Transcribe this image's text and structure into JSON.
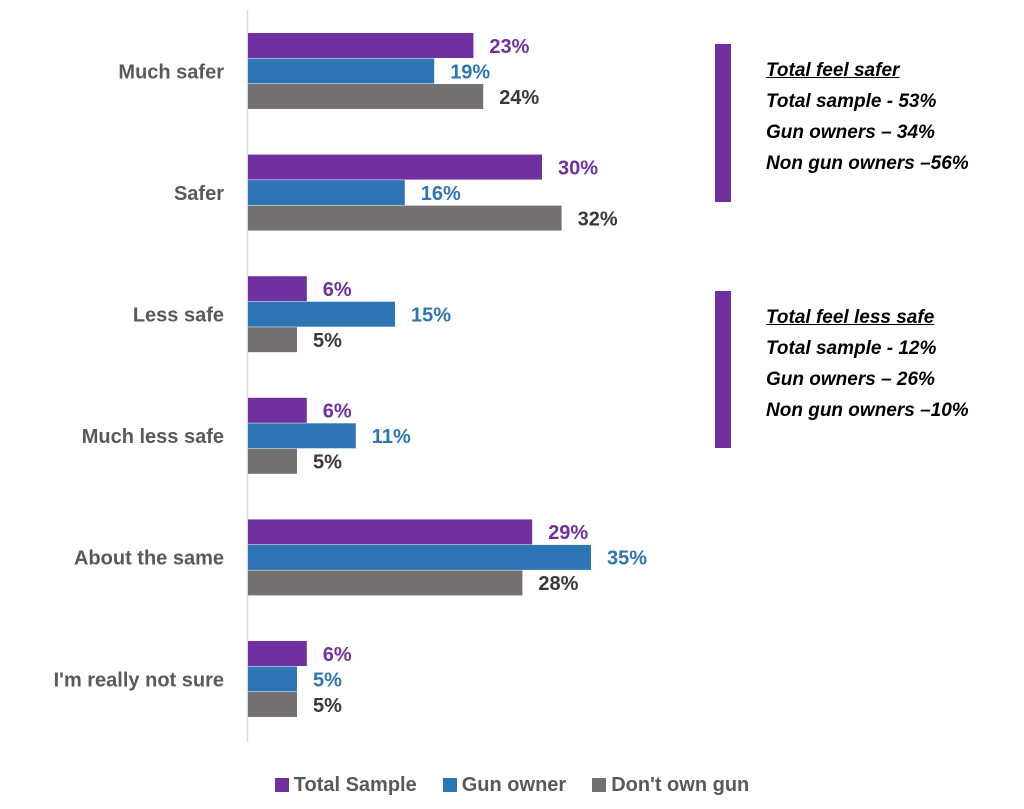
{
  "colors": {
    "total": "#7030A0",
    "gun_owner": "#2E75B6",
    "dont_own": "#767171",
    "category_text": "#595959",
    "axis": "#D9D9D9",
    "callout_text": "#000000"
  },
  "chart_data": {
    "type": "bar",
    "orientation": "horizontal",
    "categories": [
      "Much safer",
      "Safer",
      "Less safe",
      "Much less safe",
      "About the same",
      "I'm really not sure"
    ],
    "series": [
      {
        "name": "Total Sample",
        "values": [
          23,
          30,
          6,
          6,
          29,
          6
        ]
      },
      {
        "name": "Gun owner",
        "values": [
          19,
          16,
          15,
          11,
          35,
          5
        ]
      },
      {
        "name": "Don't own gun",
        "values": [
          24,
          32,
          5,
          5,
          28,
          5
        ]
      }
    ],
    "value_suffix": "%",
    "xlim": [
      0,
      70
    ],
    "grid": false,
    "legend_position": "bottom"
  },
  "callouts": [
    {
      "title": "Total feel safer",
      "lines": [
        "Total sample - 53%",
        "Gun owners – 34%",
        "Non gun owners  –56%"
      ]
    },
    {
      "title": "Total feel less safe",
      "lines": [
        "Total sample - 12%",
        "Gun owners – 26%",
        "Non gun owners  –10%"
      ]
    }
  ]
}
